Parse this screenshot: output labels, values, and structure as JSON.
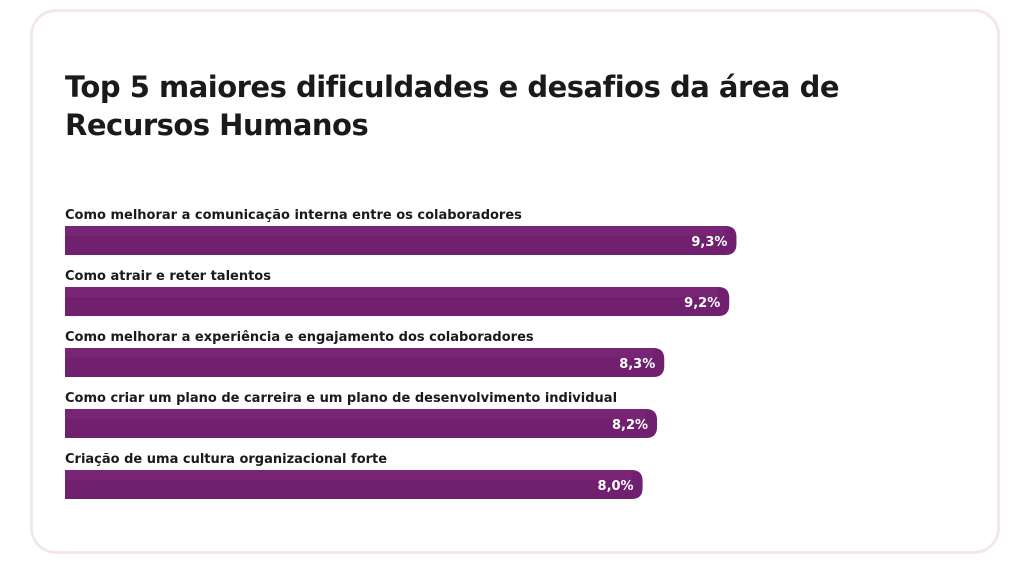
{
  "title": "Top 5 maiores dificuldades e desafios da área de Recursos Humanos",
  "colors": {
    "bar": "#70206e",
    "bar_highlight": "#7d2a7a",
    "card_border": "#f3e7ee",
    "text": "#1a1a1a"
  },
  "chart_data": {
    "type": "bar",
    "orientation": "horizontal",
    "categories": [
      "Como melhorar a comunicação interna entre os colaboradores",
      "Como atrair e reter talentos",
      "Como melhorar a experiência e engajamento dos colaboradores",
      "Como criar um plano de carreira e um plano de desenvolvimento individual",
      "Criação de uma cultura organizacional forte"
    ],
    "values": [
      9.3,
      9.2,
      8.3,
      8.2,
      8.0
    ],
    "value_labels": [
      "9,3%",
      "9,2%",
      "8,3%",
      "8,2%",
      "8,0%"
    ],
    "unit": "%",
    "title": "Top 5 maiores dificuldades e desafios da área de Recursos Humanos",
    "xlabel": "",
    "ylabel": "",
    "grid": false,
    "legend": "none"
  }
}
